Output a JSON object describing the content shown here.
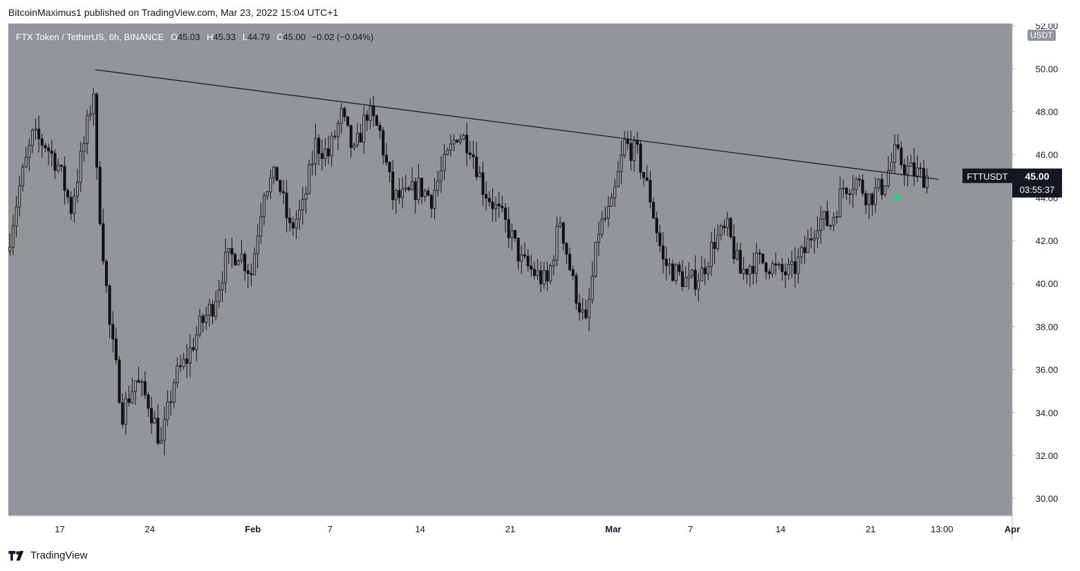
{
  "header": {
    "publisher": "BitcoinMaximus1 published on TradingView.com, Mar 23, 2022 15:04 UTC+1"
  },
  "footer": {
    "brand": "TradingView",
    "logo_icon": "tradingview-logo-icon"
  },
  "colors": {
    "plot_bg": "#929599",
    "candle": "#111111",
    "axis_bg": "#ffffff",
    "text": "#131722",
    "highlight": "#00e676",
    "label_bg": "#131722"
  },
  "chart_data": {
    "type": "candlestick",
    "symbol": "FTX Token / TetherUS, 6h, BINANCE",
    "ohlc_legend": {
      "o_label": "O",
      "o": "45.03",
      "h_label": "H",
      "h": "45.33",
      "l_label": "L",
      "l": "44.79",
      "c_label": "C",
      "c": "45.00",
      "change": "−0.02 (−0.04%)"
    },
    "currency_badge": "USDT",
    "y_axis": {
      "ticks": [
        30,
        32,
        34,
        36,
        38,
        40,
        42,
        44,
        46,
        48,
        50,
        52
      ],
      "tick_labels": [
        "30.00",
        "32.00",
        "34.00",
        "36.00",
        "38.00",
        "40.00",
        "42.00",
        "44.00",
        "46.00",
        "48.00",
        "50.00",
        "52.00"
      ],
      "range": [
        29.2,
        52.1
      ]
    },
    "x_axis": {
      "tick_labels": [
        "17",
        "24",
        "Feb",
        "7",
        "14",
        "21",
        "Mar",
        "7",
        "14",
        "21",
        "13:00",
        "Apr"
      ],
      "tick_dates": [
        "2022-01-17",
        "2022-01-24",
        "2022-02-01",
        "2022-02-07",
        "2022-02-14",
        "2022-02-21",
        "2022-03-01",
        "2022-03-07",
        "2022-03-14",
        "2022-03-21",
        "2022-03-26 13:00",
        "2022-04-01"
      ],
      "range": [
        "2022-01-13",
        "2022-04-01"
      ]
    },
    "price_label": {
      "symbol": "FTTUSDT",
      "price": "45.00",
      "countdown": "03:55:37"
    },
    "trendline": {
      "start": {
        "date": "2022-01-19 18:00",
        "price": 49.95
      },
      "end": {
        "date": "2022-03-26 06:00",
        "price": 44.85
      }
    },
    "marker": {
      "type": "up-arrow",
      "date": "2022-03-23 00:00",
      "price": 44.05
    },
    "path_points": [
      [
        "2022-01-13",
        41.5
      ],
      [
        "2022-01-14",
        44.5
      ],
      [
        "2022-01-15",
        46.8
      ],
      [
        "2022-01-16",
        46.5
      ],
      [
        "2022-01-17",
        45.5
      ],
      [
        "2022-01-18",
        43.5
      ],
      [
        "2022-01-19",
        46.5
      ],
      [
        "2022-01-19 18:00",
        49.0
      ],
      [
        "2022-01-20",
        45.0
      ],
      [
        "2022-01-21",
        38.0
      ],
      [
        "2022-01-22",
        34.0
      ],
      [
        "2022-01-23",
        35.5
      ],
      [
        "2022-01-24",
        34.5
      ],
      [
        "2022-01-25",
        32.5
      ],
      [
        "2022-01-26",
        35.5
      ],
      [
        "2022-01-27",
        36.5
      ],
      [
        "2022-01-28",
        38.0
      ],
      [
        "2022-01-29",
        39.0
      ],
      [
        "2022-01-30",
        41.0
      ],
      [
        "2022-01-31",
        41.5
      ],
      [
        "2022-02-01",
        40.5
      ],
      [
        "2022-02-02",
        44.5
      ],
      [
        "2022-02-03",
        45.0
      ],
      [
        "2022-02-04",
        42.5
      ],
      [
        "2022-02-05",
        43.5
      ],
      [
        "2022-02-06",
        46.5
      ],
      [
        "2022-02-07",
        46.0
      ],
      [
        "2022-02-08",
        47.8
      ],
      [
        "2022-02-09",
        46.0
      ],
      [
        "2022-02-10",
        48.0
      ],
      [
        "2022-02-11",
        47.0
      ],
      [
        "2022-02-12",
        44.0
      ],
      [
        "2022-02-13",
        44.0
      ],
      [
        "2022-02-14",
        44.5
      ],
      [
        "2022-02-15",
        44.0
      ],
      [
        "2022-02-16",
        45.5
      ],
      [
        "2022-02-17",
        47.0
      ],
      [
        "2022-02-18",
        46.5
      ],
      [
        "2022-02-19",
        44.5
      ],
      [
        "2022-02-20",
        43.5
      ],
      [
        "2022-02-21",
        42.5
      ],
      [
        "2022-02-22",
        41.0
      ],
      [
        "2022-02-23",
        40.5
      ],
      [
        "2022-02-24",
        40.0
      ],
      [
        "2022-02-25",
        43.0
      ],
      [
        "2022-02-26",
        40.0
      ],
      [
        "2022-02-27",
        38.0
      ],
      [
        "2022-02-28",
        42.5
      ],
      [
        "2022-03-01",
        43.5
      ],
      [
        "2022-03-02",
        46.5
      ],
      [
        "2022-03-03",
        46.0
      ],
      [
        "2022-03-04",
        44.0
      ],
      [
        "2022-03-05",
        41.0
      ],
      [
        "2022-03-06",
        40.5
      ],
      [
        "2022-03-07",
        40.0
      ],
      [
        "2022-03-08",
        40.5
      ],
      [
        "2022-03-09",
        42.0
      ],
      [
        "2022-03-10",
        42.5
      ],
      [
        "2022-03-11",
        40.5
      ],
      [
        "2022-03-12",
        41.0
      ],
      [
        "2022-03-13",
        41.0
      ],
      [
        "2022-03-14",
        40.5
      ],
      [
        "2022-03-15",
        40.5
      ],
      [
        "2022-03-16",
        41.5
      ],
      [
        "2022-03-17",
        43.0
      ],
      [
        "2022-03-18",
        42.8
      ],
      [
        "2022-03-19",
        44.5
      ],
      [
        "2022-03-20",
        44.8
      ],
      [
        "2022-03-21",
        44.0
      ],
      [
        "2022-03-22",
        44.5
      ],
      [
        "2022-03-23",
        46.0
      ],
      [
        "2022-03-24",
        45.3
      ],
      [
        "2022-03-25 06:00",
        45.0
      ]
    ]
  }
}
